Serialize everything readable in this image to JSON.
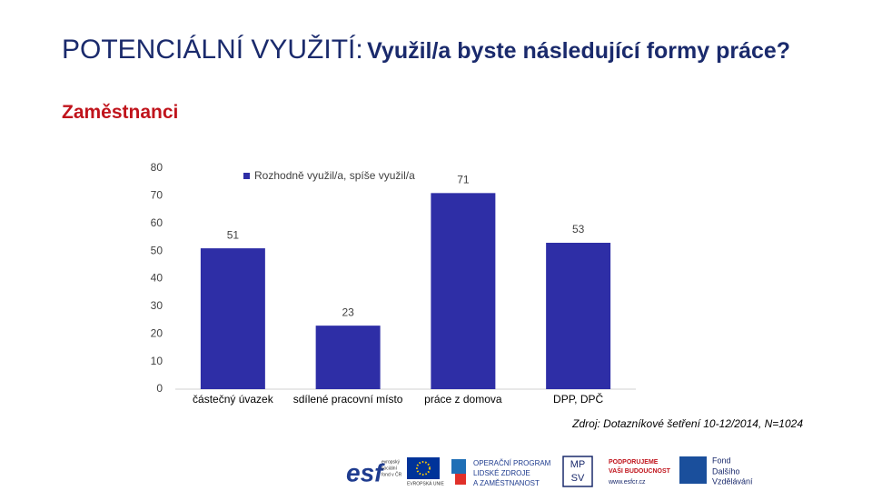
{
  "title": {
    "main": "POTENCIÁLNÍ VYUŽITÍ:",
    "question": "Využil/a byste následující formy práce?",
    "subtitle": "Zaměstnanci"
  },
  "chart_data": {
    "type": "bar",
    "categories": [
      "částečný úvazek",
      "sdílené pracovní místo",
      "práce z domova",
      "DPP, DPČ"
    ],
    "series": [
      {
        "name": "Rozhodně využil/a, spíše využil/a",
        "color": "#2e2ea6",
        "values": [
          51,
          23,
          71,
          53
        ]
      }
    ],
    "ylim": [
      0,
      80
    ],
    "yticks": [
      0,
      10,
      20,
      30,
      40,
      50,
      60,
      70,
      80
    ],
    "legend": "top",
    "data_labels": true
  },
  "source": "Zdroj: Dotazníkové šetření 10-12/2014, N=1024",
  "footer": {
    "esf": "esf",
    "esf_lines": [
      "evropský",
      "sociální",
      "fond v ČR"
    ],
    "eu": "EVROPSKÁ UNIE",
    "op_lines": [
      "OPERAČNÍ PROGRAM",
      "LIDSKÉ ZDROJE",
      "A ZAMĚSTNANOST"
    ],
    "support_lines": [
      "PODPORUJEME",
      "VAŠI BUDOUCNOST",
      "www.esfcr.cz"
    ],
    "mpsv_lines": [
      "MP",
      "SV"
    ],
    "fdv_lines": [
      "Fond",
      "Dalšího",
      "Vzdělávání"
    ]
  }
}
